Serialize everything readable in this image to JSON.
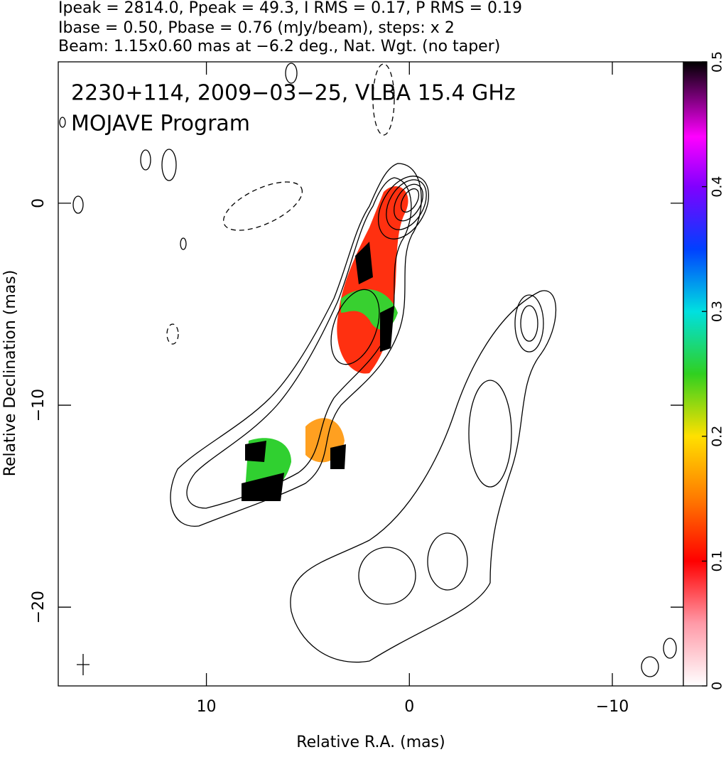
{
  "chart_data": {
    "type": "contour",
    "header": [
      "Ipeak = 2814.0, Ppeak = 49.3, I RMS = 0.17, P RMS = 0.19",
      "Ibase = 0.50, Pbase = 0.76 (mJy/beam), steps: x 2",
      "Beam: 1.15x0.60 mas at −6.2 deg., Nat. Wgt. (no taper)"
    ],
    "annotations": [
      "2230+114, 2009−03−25, VLBA 15.4 GHz",
      "MOJAVE Program"
    ],
    "xlabel": "Relative R.A. (mas)",
    "ylabel": "Relative Declination (mas)",
    "xlim": [
      17.3,
      -13.5
    ],
    "xticks": [
      10,
      0,
      {
        "value": -10,
        "label": "−10"
      }
    ],
    "ylim": [
      -23.9,
      7
    ],
    "yticks": [
      0,
      {
        "value": -10,
        "label": "−10"
      },
      {
        "value": -20,
        "label": "−20"
      }
    ],
    "colorbar": {
      "lim": [
        0,
        0.5
      ],
      "ticks": [
        0,
        0.1,
        0.2,
        0.3,
        0.4,
        0.5
      ]
    }
  }
}
